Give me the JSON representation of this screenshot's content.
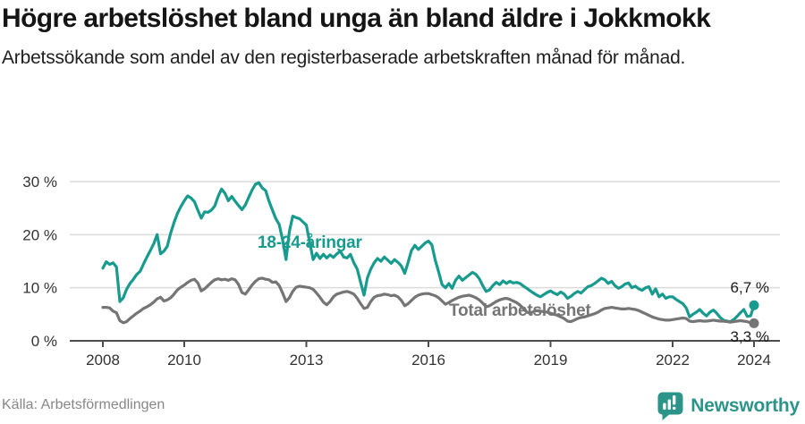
{
  "page": {
    "title": "Högre arbetslöshet bland unga än bland äldre i Jokkmokk",
    "subtitle": "Arbetssökande som andel av den registerbaserade arbetskraften månad för månad."
  },
  "chart_data": {
    "type": "line",
    "unit": "%",
    "x_range": {
      "start": "2008-01",
      "end": "2024-01",
      "frequency": "monthly"
    },
    "x_tick_years": [
      2008,
      2010,
      2013,
      2016,
      2019,
      2022,
      2024
    ],
    "x_tick_labels": [
      "2008",
      "2010",
      "2013",
      "2016",
      "2019",
      "2022",
      "2024"
    ],
    "y_tick_values": [
      0,
      10,
      20,
      30
    ],
    "y_tick_labels": [
      "0 %",
      "10 %",
      "20 %",
      "30 %"
    ],
    "ylim": [
      0,
      31
    ],
    "grid": "horizontal",
    "legend_position": "inline-labels",
    "series": [
      {
        "name": "18-24-åringar",
        "color": "#189b8e",
        "end_label": "6,7 %",
        "last_value": 6.7,
        "values": [
          13.7,
          14.9,
          14.4,
          14.7,
          13.9,
          7.4,
          8.1,
          9.7,
          10.8,
          11.6,
          12.5,
          13.1,
          14.5,
          15.8,
          17.0,
          18.3,
          20.0,
          16.4,
          16.9,
          17.8,
          20.3,
          22.3,
          24.0,
          25.3,
          26.4,
          27.3,
          26.9,
          26.2,
          24.6,
          23.1,
          24.3,
          24.2,
          24.6,
          25.4,
          27.2,
          28.6,
          27.8,
          26.4,
          27.2,
          26.3,
          25.5,
          24.7,
          25.6,
          27.0,
          28.4,
          29.5,
          29.8,
          28.8,
          28.3,
          26.3,
          24.6,
          23.0,
          21.9,
          19.0,
          15.3,
          20.6,
          23.5,
          23.2,
          23.0,
          22.4,
          21.8,
          18.5,
          15.3,
          16.5,
          15.5,
          16.3,
          15.6,
          16.2,
          15.7,
          16.4,
          16.9,
          15.8,
          15.6,
          16.3,
          14.7,
          13.5,
          11.0,
          8.6,
          11.9,
          13.5,
          14.7,
          15.5,
          15.0,
          15.8,
          15.2,
          14.6,
          15.3,
          14.8,
          14.1,
          12.7,
          14.8,
          17.0,
          18.0,
          17.2,
          17.8,
          18.4,
          18.8,
          18.1,
          15.2,
          13.0,
          10.6,
          10.0,
          10.8,
          9.9,
          11.4,
          12.2,
          11.4,
          11.9,
          12.4,
          12.9,
          12.5,
          11.7,
          10.4,
          9.3,
          9.6,
          10.4,
          11.0,
          10.6,
          11.3,
          10.8,
          11.2,
          10.9,
          11.0,
          10.8,
          10.3,
          9.9,
          9.4,
          9.0,
          8.6,
          8.3,
          8.7,
          9.1,
          9.4,
          9.0,
          8.7,
          9.2,
          8.8,
          8.0,
          8.4,
          8.9,
          9.3,
          9.0,
          9.6,
          10.2,
          10.4,
          10.8,
          11.3,
          11.8,
          11.5,
          10.8,
          11.2,
          10.4,
          9.9,
          10.2,
          10.7,
          10.9,
          10.0,
          10.3,
          9.8,
          9.5,
          10.0,
          10.2,
          8.8,
          9.8,
          8.3,
          8.8,
          8.0,
          8.3,
          8.3,
          7.8,
          7.4,
          7.0,
          6.2,
          4.5,
          5.0,
          5.4,
          5.9,
          5.2,
          4.7,
          5.4,
          5.8,
          5.2,
          4.4,
          3.9,
          3.7,
          3.6,
          4.0,
          4.6,
          5.3,
          5.9,
          4.6,
          4.7,
          6.7
        ]
      },
      {
        "name": "Total arbetslöshet",
        "color": "#757575",
        "end_label": "3,3 %",
        "last_value": 3.3,
        "values": [
          6.3,
          6.3,
          6.2,
          5.6,
          5.3,
          3.8,
          3.4,
          3.6,
          4.2,
          4.7,
          5.2,
          5.6,
          6.1,
          6.4,
          6.8,
          7.3,
          7.9,
          8.2,
          7.5,
          7.7,
          8.1,
          8.8,
          9.6,
          10.1,
          10.5,
          11.0,
          11.4,
          11.6,
          10.9,
          9.4,
          9.8,
          10.4,
          11.0,
          11.5,
          11.7,
          11.5,
          11.6,
          11.4,
          11.7,
          11.5,
          10.6,
          9.1,
          8.8,
          9.6,
          10.5,
          11.2,
          11.7,
          11.8,
          11.6,
          11.5,
          11.0,
          11.1,
          10.4,
          9.0,
          7.4,
          8.1,
          9.3,
          10.1,
          10.3,
          10.2,
          10.1,
          10.0,
          9.7,
          9.0,
          8.2,
          7.3,
          6.8,
          7.4,
          8.3,
          8.8,
          9.0,
          9.2,
          9.3,
          9.1,
          8.8,
          8.0,
          7.0,
          6.1,
          6.3,
          7.4,
          8.2,
          8.5,
          8.6,
          8.8,
          8.7,
          8.5,
          8.6,
          8.3,
          7.6,
          6.6,
          7.0,
          7.6,
          8.2,
          8.6,
          8.8,
          8.9,
          8.9,
          8.7,
          8.5,
          8.1,
          7.5,
          6.9,
          7.2,
          7.6,
          7.9,
          8.2,
          8.4,
          8.5,
          8.6,
          8.4,
          8.1,
          7.7,
          7.1,
          6.4,
          6.6,
          7.0,
          7.4,
          7.7,
          7.9,
          8.0,
          7.8,
          7.5,
          7.2,
          6.7,
          6.1,
          5.4,
          5.2,
          5.5,
          5.7,
          5.6,
          5.5,
          5.4,
          5.2,
          5.0,
          4.8,
          4.5,
          4.2,
          3.7,
          3.6,
          3.9,
          4.2,
          4.4,
          4.5,
          4.7,
          4.9,
          5.1,
          5.4,
          5.8,
          6.1,
          6.2,
          6.3,
          6.2,
          6.1,
          6.0,
          6.0,
          6.1,
          6.0,
          5.9,
          5.7,
          5.4,
          5.1,
          4.8,
          4.5,
          4.3,
          4.1,
          4.0,
          3.9,
          3.9,
          4.0,
          4.1,
          4.2,
          4.3,
          4.2,
          3.7,
          3.6,
          3.7,
          3.8,
          3.7,
          3.7,
          3.8,
          3.9,
          3.8,
          3.7,
          3.7,
          3.6,
          3.5,
          3.6,
          3.7,
          3.8,
          3.7,
          3.6,
          3.4,
          3.3
        ]
      }
    ]
  },
  "footer": {
    "source": "Källa: Arbetsförmedlingen",
    "brand": "Newsworthy"
  },
  "colors": {
    "accent_teal": "#189b8e",
    "line_gray": "#757575",
    "logo_teal": "#2d948a",
    "axis": "#4d4d4d",
    "grid": "#dbdbdb",
    "tick_text": "#333333",
    "end_label_text": "#1a1a1a",
    "muted_text": "#878787"
  }
}
